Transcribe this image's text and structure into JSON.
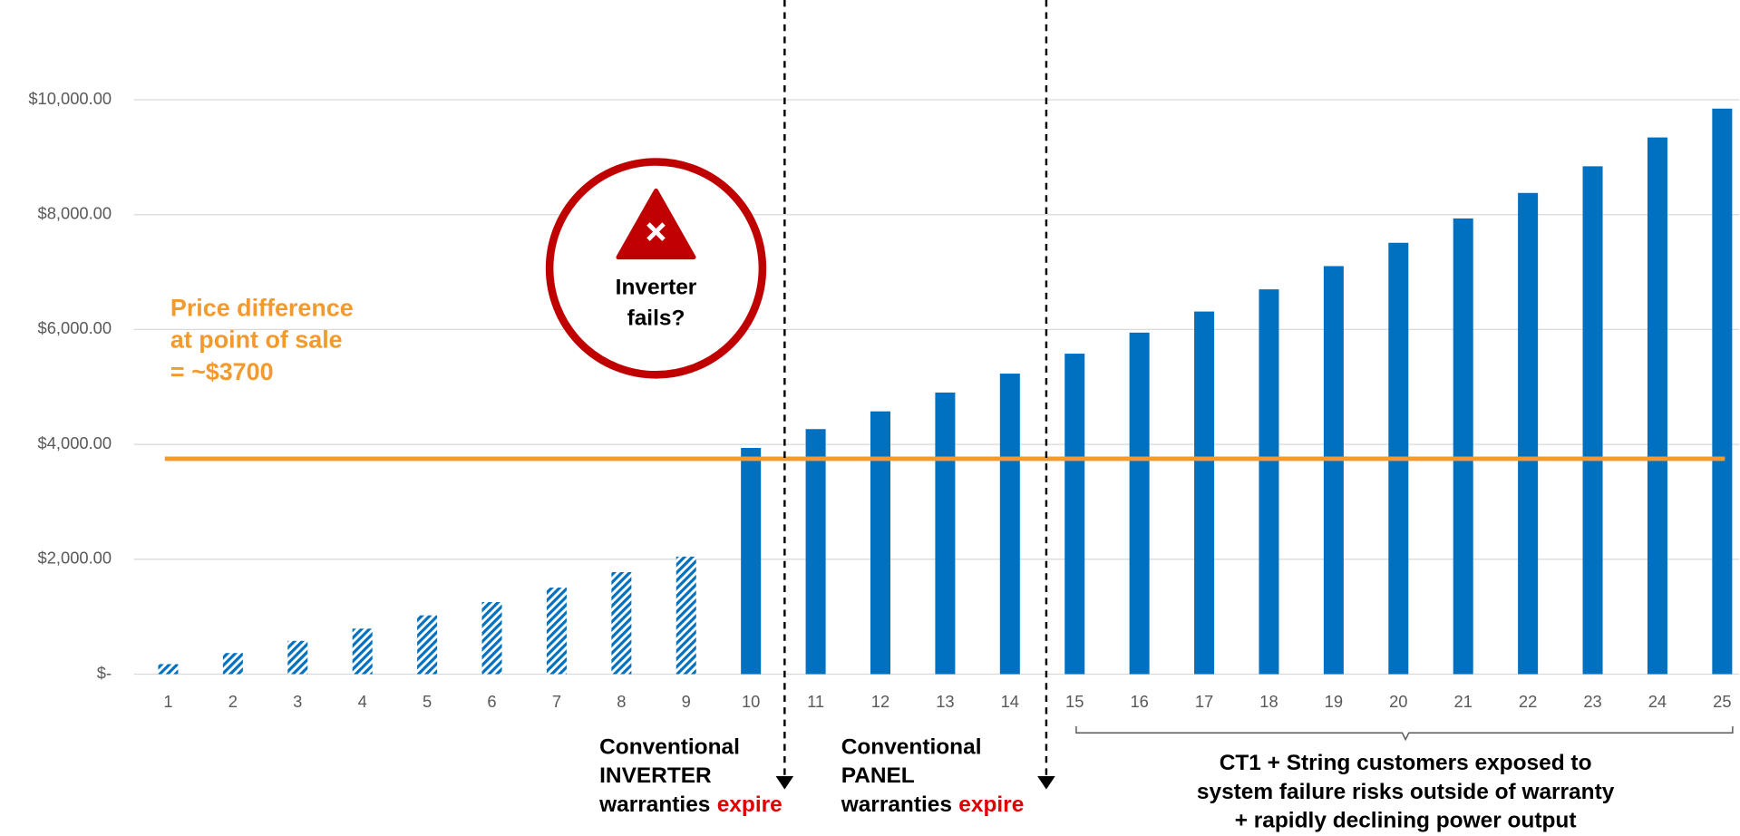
{
  "chart_data": {
    "type": "bar",
    "categories": [
      "1",
      "2",
      "3",
      "4",
      "5",
      "6",
      "7",
      "8",
      "9",
      "10",
      "11",
      "12",
      "13",
      "14",
      "15",
      "16",
      "17",
      "18",
      "19",
      "20",
      "21",
      "22",
      "23",
      "24",
      "25"
    ],
    "series": [
      {
        "color": "#0070c0",
        "pattern": "hatched",
        "values": [
          174,
          367,
          579,
          792,
          1023,
          1255,
          1506,
          1776,
          2046,
          null,
          null,
          null,
          null,
          null,
          null,
          null,
          null,
          null,
          null,
          null,
          null,
          null,
          null,
          null,
          null
        ]
      },
      {
        "color": "#0070c0",
        "pattern": "solid",
        "values": [
          null,
          null,
          null,
          null,
          null,
          null,
          null,
          null,
          null,
          3938,
          4266,
          4575,
          4903,
          5232,
          5579,
          5946,
          6313,
          6699,
          7104,
          7510,
          7934,
          8378,
          8842,
          9344,
          9846
        ]
      }
    ],
    "ylim": [
      0,
      11737
    ],
    "yticks": [
      {
        "value": 0,
        "label": "$-"
      },
      {
        "value": 2000,
        "label": "$2,000.00"
      },
      {
        "value": 4000,
        "label": "$4,000.00"
      },
      {
        "value": 6000,
        "label": "$6,000.00"
      },
      {
        "value": 8000,
        "label": "$8,000.00"
      },
      {
        "value": 10000,
        "label": "$10,000.00"
      }
    ],
    "grid": true,
    "reference_line": {
      "value": 3750,
      "color": "#f39a2e"
    },
    "annotations": {
      "price_note": [
        "Price difference",
        "at point of sale",
        "= ~$3700"
      ],
      "callout": [
        "Inverter",
        "fails?"
      ],
      "inverter_note": {
        "lines": [
          "Conventional",
          "INVERTER",
          "warranties"
        ],
        "emphasis": "expire"
      },
      "panel_note": {
        "lines": [
          "Conventional",
          "PANEL",
          "warranties"
        ],
        "emphasis": "expire"
      },
      "exposure_note": [
        "CT1 + String customers exposed to",
        "system failure risks outside of warranty",
        "+ rapidly declining power output"
      ]
    }
  }
}
